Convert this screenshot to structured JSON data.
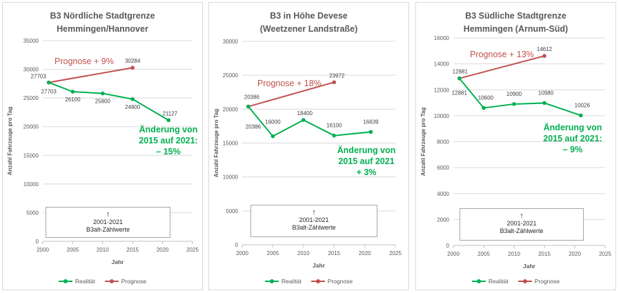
{
  "colors": {
    "reality": "#00b050",
    "forecast": "#c0504d",
    "axis_text": "#595959",
    "grid": "#d9d9d9",
    "value_label": "#404040"
  },
  "legend": {
    "reality": "Realität",
    "forecast": "Prognose"
  },
  "note": {
    "arrow": "↑",
    "line1": "2001-2021",
    "line2": "B3alt-Zählwerte"
  },
  "chart_data": [
    {
      "type": "line",
      "title_lines": [
        "B3 Nördliche Stadtgrenze",
        "Hemmingen/Hannover"
      ],
      "xlabel": "Jahr",
      "ylabel": "Anzahl Fahrzeuge pro Tag",
      "xlim": [
        2000,
        2025
      ],
      "xticks": [
        2000,
        2005,
        2010,
        2015,
        2020,
        2025
      ],
      "ylim": [
        0,
        35000
      ],
      "yticks": [
        0,
        5000,
        10000,
        15000,
        20000,
        25000,
        30000,
        35000
      ],
      "series": [
        {
          "name": "Realität",
          "x": [
            2001,
            2005,
            2010,
            2015,
            2021
          ],
          "values": [
            27703,
            26100,
            25800,
            24800,
            21127
          ],
          "labels": [
            "27703",
            "26100",
            "25800",
            "24800",
            "21127"
          ]
        },
        {
          "name": "Prognose",
          "x": [
            2001,
            2015
          ],
          "values": [
            27703,
            30284
          ],
          "labels": [
            "27703",
            "30284"
          ]
        }
      ],
      "forecast_annotation": "Prognose  + 9%",
      "change_annotation": [
        "Änderung von",
        "2015 auf 2021:",
        "– 15%"
      ]
    },
    {
      "type": "line",
      "title_lines": [
        "B3 in Höhe Devese",
        "(Weetzener Landstraße)"
      ],
      "xlabel": "Jahr",
      "ylabel": "Anzahl Fahrzeuge pro Tag",
      "xlim": [
        2000,
        2025
      ],
      "xticks": [
        2000,
        2005,
        2010,
        2015,
        2020,
        2025
      ],
      "ylim": [
        0,
        30000
      ],
      "yticks": [
        0,
        5000,
        10000,
        15000,
        20000,
        25000,
        30000
      ],
      "series": [
        {
          "name": "Realität",
          "x": [
            2001,
            2005,
            2010,
            2015,
            2021
          ],
          "values": [
            20386,
            16000,
            18400,
            16100,
            16639
          ],
          "labels": [
            "20386",
            "16000",
            "18400",
            "16100",
            "16639"
          ]
        },
        {
          "name": "Prognose",
          "x": [
            2001,
            2015
          ],
          "values": [
            20386,
            23972
          ],
          "labels": [
            "20386",
            "23972"
          ]
        }
      ],
      "forecast_annotation": "Prognose  + 18%",
      "change_annotation": [
        "Änderung von",
        "2015 auf 2021",
        "+ 3%"
      ]
    },
    {
      "type": "line",
      "title_lines": [
        "B3 Südliche Stadtgrenze",
        "Hemmingen (Arnum-Süd)"
      ],
      "xlabel": "Jahr",
      "ylabel": "Anzahl Fahrzeuge pro Tag",
      "xlim": [
        2000,
        2025
      ],
      "xticks": [
        2000,
        2005,
        2010,
        2015,
        2020,
        2025
      ],
      "ylim": [
        0,
        16000
      ],
      "yticks": [
        0,
        2000,
        4000,
        6000,
        8000,
        10000,
        12000,
        14000,
        16000
      ],
      "series": [
        {
          "name": "Realität",
          "x": [
            2001,
            2005,
            2010,
            2015,
            2021
          ],
          "values": [
            12881,
            10600,
            10900,
            10980,
            10026
          ],
          "labels": [
            "12881",
            "10600",
            "10900",
            "10980",
            "10026"
          ]
        },
        {
          "name": "Prognose",
          "x": [
            2001,
            2015
          ],
          "values": [
            12881,
            14612
          ],
          "labels": [
            "12881",
            "14612"
          ]
        }
      ],
      "forecast_annotation": "Prognose  + 13%",
      "change_annotation": [
        "Änderung von",
        "2015 auf 2021:",
        "– 9%"
      ]
    }
  ]
}
